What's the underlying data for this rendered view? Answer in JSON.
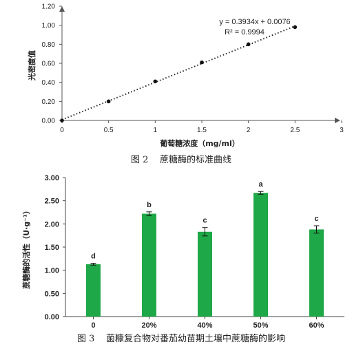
{
  "chart_data": [
    {
      "type": "scatter",
      "caption": "图 2    蔗糖酶的标准曲线",
      "xlabel": "葡萄糖浓度（mg/ml）",
      "ylabel": "光密度值",
      "xlim": [
        0,
        3
      ],
      "ylim": [
        0,
        1.2
      ],
      "x_ticks": [
        "0",
        "0.5",
        "1",
        "1.5",
        "2",
        "2.5",
        "3"
      ],
      "y_ticks": [
        "0.00",
        "0.20",
        "0.40",
        "0.60",
        "0.80",
        "1.00",
        "1.20"
      ],
      "x": [
        0,
        0.5,
        1,
        1.5,
        2,
        2.5
      ],
      "y": [
        0.0,
        0.2,
        0.41,
        0.61,
        0.8,
        0.98
      ],
      "trendline": {
        "equation": "y = 0.3934x + 0.0076",
        "r2": "R² = 0.9994",
        "slope": 0.3934,
        "intercept": 0.0076
      }
    },
    {
      "type": "bar",
      "caption": "图 3    菌糠复合物对番茄幼苗期土壤中蔗糖酶的影响",
      "ylabel": "蔗糖酶的活性（U·g⁻¹）",
      "categories": [
        "0",
        "20%",
        "40%",
        "50%",
        "60%"
      ],
      "values": [
        1.13,
        2.22,
        1.83,
        2.67,
        1.88
      ],
      "errors": [
        0.02,
        0.04,
        0.09,
        0.03,
        0.08
      ],
      "letters": [
        "d",
        "b",
        "c",
        "a",
        "c"
      ],
      "ylim": [
        0,
        3
      ],
      "y_ticks": [
        "0.00",
        "0.50",
        "1.00",
        "1.50",
        "2.00",
        "2.50",
        "3.00"
      ],
      "bar_color": "#1fa847"
    }
  ]
}
